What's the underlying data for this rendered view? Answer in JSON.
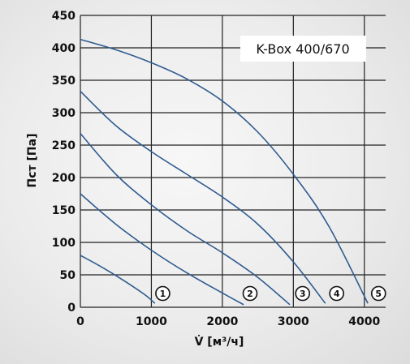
{
  "chart_data": {
    "type": "line",
    "title": "K-Box 400/670",
    "xlabel": "V̇ [м³/ч]",
    "ylabel": "Пст [Па]",
    "xlim": [
      0,
      4300
    ],
    "ylim": [
      0,
      450
    ],
    "x_ticks": [
      "0",
      "1000",
      "2000",
      "3000",
      "4000"
    ],
    "y_ticks": [
      "0",
      "50",
      "100",
      "150",
      "200",
      "250",
      "300",
      "350",
      "400",
      "450"
    ],
    "x_tick_values": [
      0,
      1000,
      2000,
      3000,
      4000
    ],
    "y_tick_values": [
      0,
      50,
      100,
      150,
      200,
      250,
      300,
      350,
      400,
      450
    ],
    "grid": true,
    "series": [
      {
        "marker": "1",
        "marker_x": 1160,
        "points": [
          [
            0,
            80
          ],
          [
            300,
            62
          ],
          [
            600,
            42
          ],
          [
            900,
            20
          ],
          [
            1050,
            6
          ]
        ]
      },
      {
        "marker": "2",
        "marker_x": 2390,
        "points": [
          [
            0,
            175
          ],
          [
            500,
            128
          ],
          [
            1000,
            88
          ],
          [
            1500,
            53
          ],
          [
            2000,
            22
          ],
          [
            2300,
            4
          ]
        ]
      },
      {
        "marker": "3",
        "marker_x": 3130,
        "points": [
          [
            0,
            268
          ],
          [
            500,
            205
          ],
          [
            1000,
            158
          ],
          [
            1500,
            118
          ],
          [
            2000,
            84
          ],
          [
            2500,
            46
          ],
          [
            2950,
            4
          ]
        ]
      },
      {
        "marker": "4",
        "marker_x": 3610,
        "points": [
          [
            0,
            333
          ],
          [
            500,
            280
          ],
          [
            1000,
            240
          ],
          [
            1500,
            205
          ],
          [
            2000,
            170
          ],
          [
            2500,
            128
          ],
          [
            3000,
            70
          ],
          [
            3450,
            6
          ]
        ]
      },
      {
        "marker": "5",
        "marker_x": 4200,
        "points": [
          [
            0,
            413
          ],
          [
            500,
            397
          ],
          [
            1000,
            377
          ],
          [
            1500,
            352
          ],
          [
            2000,
            318
          ],
          [
            2500,
            270
          ],
          [
            3000,
            205
          ],
          [
            3500,
            125
          ],
          [
            4050,
            6
          ]
        ]
      }
    ],
    "line_color": "#2f5b8f"
  }
}
